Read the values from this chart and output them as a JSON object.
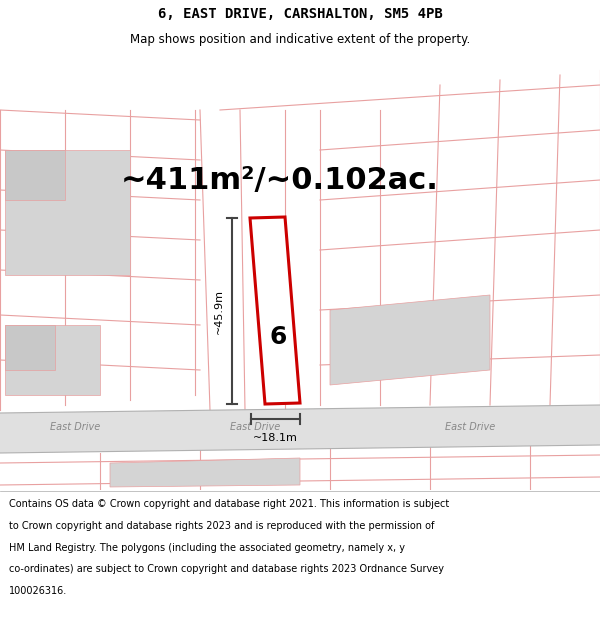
{
  "title_line1": "6, EAST DRIVE, CARSHALTON, SM5 4PB",
  "title_line2": "Map shows position and indicative extent of the property.",
  "area_text": "~411m²/~0.102ac.",
  "dim_height": "~45.9m",
  "dim_width": "~18.1m",
  "plot_number": "6",
  "street_label": "East Drive",
  "footer_lines": [
    "Contains OS data © Crown copyright and database right 2021. This information is subject",
    "to Crown copyright and database rights 2023 and is reproduced with the permission of",
    "HM Land Registry. The polygons (including the associated geometry, namely x, y",
    "co-ordinates) are subject to Crown copyright and database rights 2023 Ordnance Survey",
    "100026316."
  ],
  "bg_color": "#faf5f5",
  "road_color": "#e0e0e0",
  "road_border_color": "#b0b0b0",
  "plot_line_color": "#cc0000",
  "map_line_color": "#e8a0a0",
  "map_line_color2": "#f0b8b8",
  "dim_line_color": "#444444",
  "building_color": "#d4d4d4",
  "title_fontsize": 10,
  "subtitle_fontsize": 8.5,
  "area_fontsize": 22,
  "plot_num_fontsize": 18,
  "dim_fontsize": 8,
  "street_fontsize": 7,
  "footer_fontsize": 7
}
